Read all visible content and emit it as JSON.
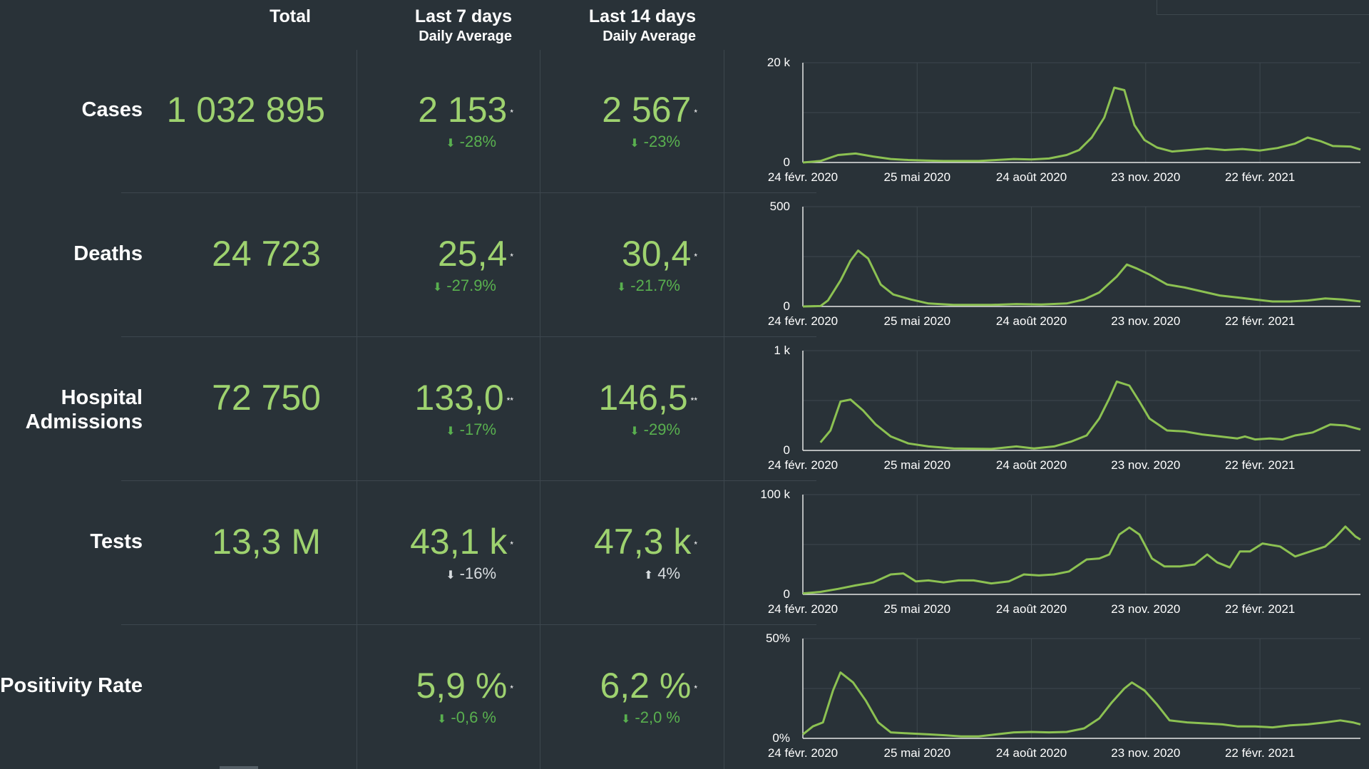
{
  "headers": {
    "total": "Total",
    "last7_line1": "Last 7 days",
    "last7_line2": "Daily Average",
    "last14_line1": "Last 14 days",
    "last14_line2": "Daily Average"
  },
  "rows": [
    {
      "label": "Cases",
      "total": "1 032 895",
      "avg7": "2 153",
      "avg7_mark": "*",
      "chg7": "-28%",
      "avg14": "2 567",
      "avg14_mark": "*",
      "chg14": "-23%"
    },
    {
      "label": "Deaths",
      "total": "24 723",
      "avg7": "25,4",
      "avg7_mark": "*",
      "chg7": "-27.9%",
      "avg14": "30,4",
      "avg14_mark": "*",
      "chg14": "-21.7%"
    },
    {
      "label": "Hospital Admissions",
      "label_line1": "Hospital",
      "label_line2": "Admissions",
      "total": "72 750",
      "avg7": "133,0",
      "avg7_mark": "**",
      "chg7": "-17%",
      "avg14": "146,5",
      "avg14_mark": "**",
      "chg14": "-29%"
    },
    {
      "label": "Tests",
      "total": "13,3 M",
      "avg7": "43,1 k",
      "avg7_mark": "*",
      "chg7": "-16%",
      "avg14": "47,3 k",
      "avg14_mark": "*",
      "chg14": "4%"
    },
    {
      "label": "Positivity Rate",
      "total": "",
      "avg7": "5,9 %",
      "avg7_mark": "*",
      "chg7": "-0,6 %",
      "avg14": "6,2 %",
      "avg14_mark": "*",
      "chg14": "-2,0 %"
    }
  ],
  "colors": {
    "background": "#293238",
    "value": "#9ed26f",
    "down_arrow": "#59b04f",
    "line": "#8cc152",
    "grid": "#3d474e"
  },
  "icons": {
    "down": "arrow-down-icon",
    "up": "arrow-up-icon"
  },
  "chart_data": [
    {
      "type": "line",
      "title": "Cases",
      "x_tick_labels": [
        "24 févr. 2020",
        "25 mai 2020",
        "24 août 2020",
        "23 nov. 2020",
        "22 févr. 2021"
      ],
      "y_tick_labels": [
        "20 k",
        "0"
      ],
      "ylim": [
        0,
        20000
      ],
      "x_end_days": 444,
      "x_tick_days": [
        0,
        91,
        182,
        273,
        364
      ],
      "series": [
        {
          "values": [
            [
              0,
              0
            ],
            [
              14,
              300
            ],
            [
              28,
              1500
            ],
            [
              42,
              1800
            ],
            [
              56,
              1200
            ],
            [
              70,
              700
            ],
            [
              84,
              500
            ],
            [
              98,
              400
            ],
            [
              112,
              300
            ],
            [
              126,
              300
            ],
            [
              140,
              300
            ],
            [
              154,
              500
            ],
            [
              168,
              700
            ],
            [
              182,
              600
            ],
            [
              196,
              800
            ],
            [
              210,
              1500
            ],
            [
              220,
              2500
            ],
            [
              230,
              5000
            ],
            [
              240,
              9000
            ],
            [
              248,
              15000
            ],
            [
              256,
              14500
            ],
            [
              264,
              7500
            ],
            [
              272,
              4500
            ],
            [
              282,
              3000
            ],
            [
              294,
              2200
            ],
            [
              308,
              2500
            ],
            [
              322,
              2800
            ],
            [
              336,
              2500
            ],
            [
              350,
              2700
            ],
            [
              364,
              2400
            ],
            [
              378,
              2900
            ],
            [
              392,
              3800
            ],
            [
              402,
              5000
            ],
            [
              412,
              4300
            ],
            [
              422,
              3300
            ],
            [
              436,
              3200
            ],
            [
              444,
              2600
            ]
          ]
        }
      ]
    },
    {
      "type": "line",
      "title": "Deaths",
      "x_tick_labels": [
        "24 févr. 2020",
        "25 mai 2020",
        "24 août 2020",
        "23 nov. 2020",
        "22 févr. 2021"
      ],
      "y_tick_labels": [
        "500",
        "0"
      ],
      "ylim": [
        0,
        500
      ],
      "x_end_days": 444,
      "x_tick_days": [
        0,
        91,
        182,
        273,
        364
      ],
      "series": [
        {
          "values": [
            [
              0,
              0
            ],
            [
              14,
              2
            ],
            [
              20,
              30
            ],
            [
              30,
              130
            ],
            [
              38,
              230
            ],
            [
              44,
              280
            ],
            [
              52,
              240
            ],
            [
              62,
              110
            ],
            [
              72,
              60
            ],
            [
              86,
              35
            ],
            [
              100,
              15
            ],
            [
              120,
              8
            ],
            [
              150,
              8
            ],
            [
              170,
              12
            ],
            [
              190,
              10
            ],
            [
              210,
              15
            ],
            [
              224,
              35
            ],
            [
              236,
              70
            ],
            [
              250,
              150
            ],
            [
              258,
              210
            ],
            [
              266,
              190
            ],
            [
              276,
              160
            ],
            [
              290,
              110
            ],
            [
              304,
              95
            ],
            [
              318,
              75
            ],
            [
              332,
              55
            ],
            [
              346,
              45
            ],
            [
              360,
              35
            ],
            [
              374,
              25
            ],
            [
              388,
              25
            ],
            [
              402,
              30
            ],
            [
              416,
              40
            ],
            [
              430,
              35
            ],
            [
              444,
              25
            ]
          ]
        }
      ]
    },
    {
      "type": "line",
      "title": "Hospital Admissions",
      "x_tick_labels": [
        "24 févr. 2020",
        "25 mai 2020",
        "24 août 2020",
        "23 nov. 2020",
        "22 févr. 2021"
      ],
      "y_tick_labels": [
        "1 k",
        "0"
      ],
      "ylim": [
        0,
        1000
      ],
      "x_end_days": 444,
      "x_tick_days": [
        0,
        91,
        182,
        273,
        364
      ],
      "series": [
        {
          "values": [
            [
              14,
              80
            ],
            [
              22,
              200
            ],
            [
              30,
              490
            ],
            [
              38,
              510
            ],
            [
              48,
              400
            ],
            [
              58,
              260
            ],
            [
              70,
              140
            ],
            [
              84,
              70
            ],
            [
              100,
              40
            ],
            [
              120,
              20
            ],
            [
              150,
              15
            ],
            [
              170,
              40
            ],
            [
              184,
              20
            ],
            [
              200,
              40
            ],
            [
              214,
              90
            ],
            [
              226,
              150
            ],
            [
              236,
              320
            ],
            [
              244,
              520
            ],
            [
              250,
              690
            ],
            [
              260,
              650
            ],
            [
              268,
              490
            ],
            [
              276,
              320
            ],
            [
              290,
              200
            ],
            [
              304,
              190
            ],
            [
              318,
              160
            ],
            [
              332,
              140
            ],
            [
              346,
              120
            ],
            [
              352,
              140
            ],
            [
              360,
              110
            ],
            [
              372,
              120
            ],
            [
              382,
              110
            ],
            [
              392,
              150
            ],
            [
              406,
              180
            ],
            [
              420,
              260
            ],
            [
              432,
              250
            ],
            [
              444,
              210
            ]
          ]
        }
      ]
    },
    {
      "type": "line",
      "title": "Tests",
      "x_tick_labels": [
        "24 févr. 2020",
        "25 mai 2020",
        "24 août 2020",
        "23 nov. 2020",
        "22 févr. 2021"
      ],
      "y_tick_labels": [
        "100 k",
        "0"
      ],
      "ylim": [
        0,
        100000
      ],
      "x_end_days": 444,
      "x_tick_days": [
        0,
        91,
        182,
        273,
        364
      ],
      "series": [
        {
          "values": [
            [
              0,
              1000
            ],
            [
              14,
              2500
            ],
            [
              28,
              5500
            ],
            [
              42,
              9000
            ],
            [
              56,
              12000
            ],
            [
              70,
              20000
            ],
            [
              80,
              21000
            ],
            [
              90,
              13000
            ],
            [
              100,
              14000
            ],
            [
              112,
              12000
            ],
            [
              124,
              14000
            ],
            [
              136,
              14000
            ],
            [
              150,
              11000
            ],
            [
              164,
              13000
            ],
            [
              176,
              20000
            ],
            [
              188,
              19000
            ],
            [
              200,
              20000
            ],
            [
              212,
              23000
            ],
            [
              226,
              35000
            ],
            [
              236,
              36000
            ],
            [
              244,
              40000
            ],
            [
              252,
              60000
            ],
            [
              260,
              67000
            ],
            [
              268,
              60000
            ],
            [
              278,
              36000
            ],
            [
              288,
              28000
            ],
            [
              300,
              28000
            ],
            [
              312,
              30000
            ],
            [
              322,
              40000
            ],
            [
              330,
              32000
            ],
            [
              340,
              27000
            ],
            [
              348,
              43000
            ],
            [
              356,
              43000
            ],
            [
              366,
              51000
            ],
            [
              380,
              48000
            ],
            [
              392,
              38000
            ],
            [
              404,
              43000
            ],
            [
              416,
              48000
            ],
            [
              424,
              57000
            ],
            [
              432,
              68000
            ],
            [
              440,
              58000
            ],
            [
              444,
              55000
            ]
          ]
        }
      ]
    },
    {
      "type": "line",
      "title": "Positivity Rate",
      "x_tick_labels": [
        "24 févr. 2020",
        "25 mai 2020",
        "24 août 2020",
        "23 nov. 2020",
        "22 févr. 2021"
      ],
      "y_tick_labels": [
        "50%",
        "0%"
      ],
      "ylim": [
        0,
        50
      ],
      "x_end_days": 444,
      "x_tick_days": [
        0,
        91,
        182,
        273,
        364
      ],
      "series": [
        {
          "values": [
            [
              0,
              2
            ],
            [
              8,
              6
            ],
            [
              16,
              8
            ],
            [
              24,
              24
            ],
            [
              30,
              33
            ],
            [
              40,
              28
            ],
            [
              50,
              19
            ],
            [
              60,
              8
            ],
            [
              70,
              3
            ],
            [
              84,
              2.5
            ],
            [
              100,
              2
            ],
            [
              114,
              1.5
            ],
            [
              126,
              1
            ],
            [
              140,
              1
            ],
            [
              154,
              2
            ],
            [
              168,
              3
            ],
            [
              182,
              3.2
            ],
            [
              196,
              3
            ],
            [
              210,
              3.2
            ],
            [
              224,
              5
            ],
            [
              236,
              10
            ],
            [
              246,
              18
            ],
            [
              256,
              25
            ],
            [
              262,
              28
            ],
            [
              272,
              24
            ],
            [
              282,
              17
            ],
            [
              292,
              9
            ],
            [
              306,
              8
            ],
            [
              320,
              7.5
            ],
            [
              334,
              7
            ],
            [
              346,
              6
            ],
            [
              360,
              6
            ],
            [
              374,
              5.5
            ],
            [
              388,
              6.5
            ],
            [
              402,
              7
            ],
            [
              416,
              8
            ],
            [
              428,
              9
            ],
            [
              438,
              8
            ],
            [
              444,
              7
            ]
          ]
        }
      ]
    }
  ]
}
